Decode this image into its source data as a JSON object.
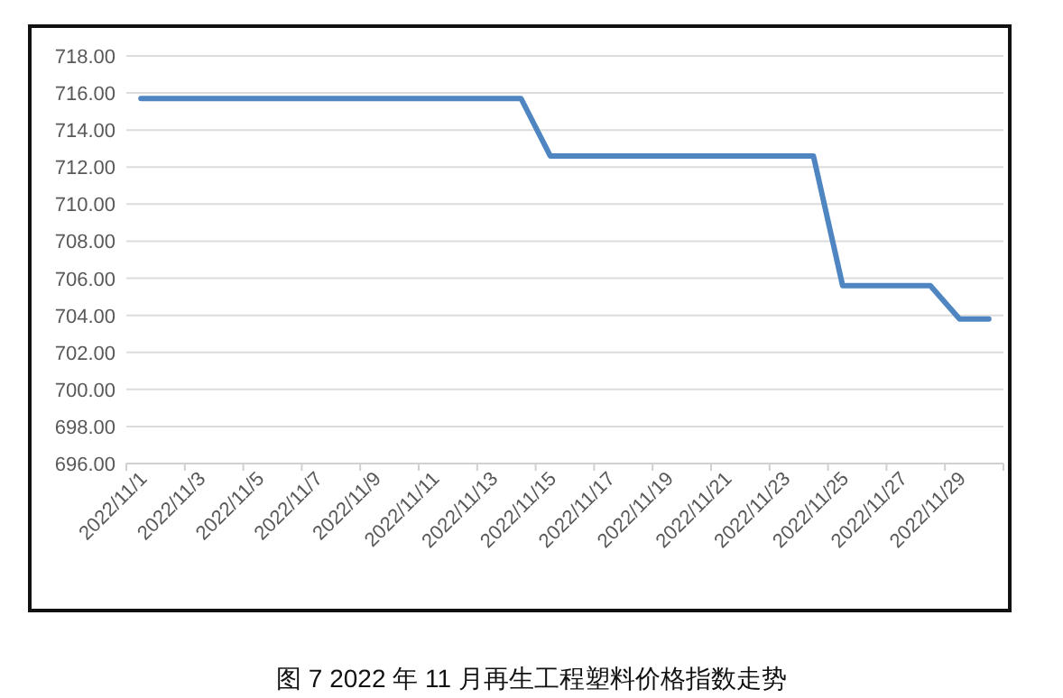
{
  "chart_data": {
    "type": "line",
    "categories": [
      "2022/11/1",
      null,
      "2022/11/3",
      null,
      "2022/11/5",
      null,
      "2022/11/7",
      null,
      "2022/11/9",
      null,
      "2022/11/11",
      null,
      "2022/11/13",
      null,
      "2022/11/15",
      null,
      "2022/11/17",
      null,
      "2022/11/19",
      null,
      "2022/11/21",
      null,
      "2022/11/23",
      null,
      "2022/11/25",
      null,
      "2022/11/27",
      null,
      "2022/11/29",
      null
    ],
    "series": [
      {
        "color": "#4f86c2",
        "values": [
          715.7,
          715.7,
          715.7,
          715.7,
          715.7,
          715.7,
          715.7,
          715.7,
          715.7,
          715.7,
          715.7,
          715.7,
          715.7,
          715.7,
          712.6,
          712.6,
          712.6,
          712.6,
          712.6,
          712.6,
          712.6,
          712.6,
          712.6,
          712.6,
          705.6,
          705.6,
          705.6,
          705.6,
          703.8,
          703.8
        ]
      }
    ],
    "ylim": [
      696,
      718
    ],
    "yticks": [
      {
        "value": 696,
        "label": "696.00"
      },
      {
        "value": 698,
        "label": "698.00"
      },
      {
        "value": 700,
        "label": "700.00"
      },
      {
        "value": 702,
        "label": "702.00"
      },
      {
        "value": 704,
        "label": "704.00"
      },
      {
        "value": 706,
        "label": "706.00"
      },
      {
        "value": 708,
        "label": "708.00"
      },
      {
        "value": 710,
        "label": "710.00"
      },
      {
        "value": 712,
        "label": "712.00"
      },
      {
        "value": 714,
        "label": "714.00"
      },
      {
        "value": 716,
        "label": "716.00"
      },
      {
        "value": 718,
        "label": "718.00"
      }
    ],
    "grid": "y",
    "marker": "none",
    "line_style": "solid",
    "annotations": [
      "图 7  2022 年 11 月再生工程塑料价格指数走势"
    ]
  }
}
